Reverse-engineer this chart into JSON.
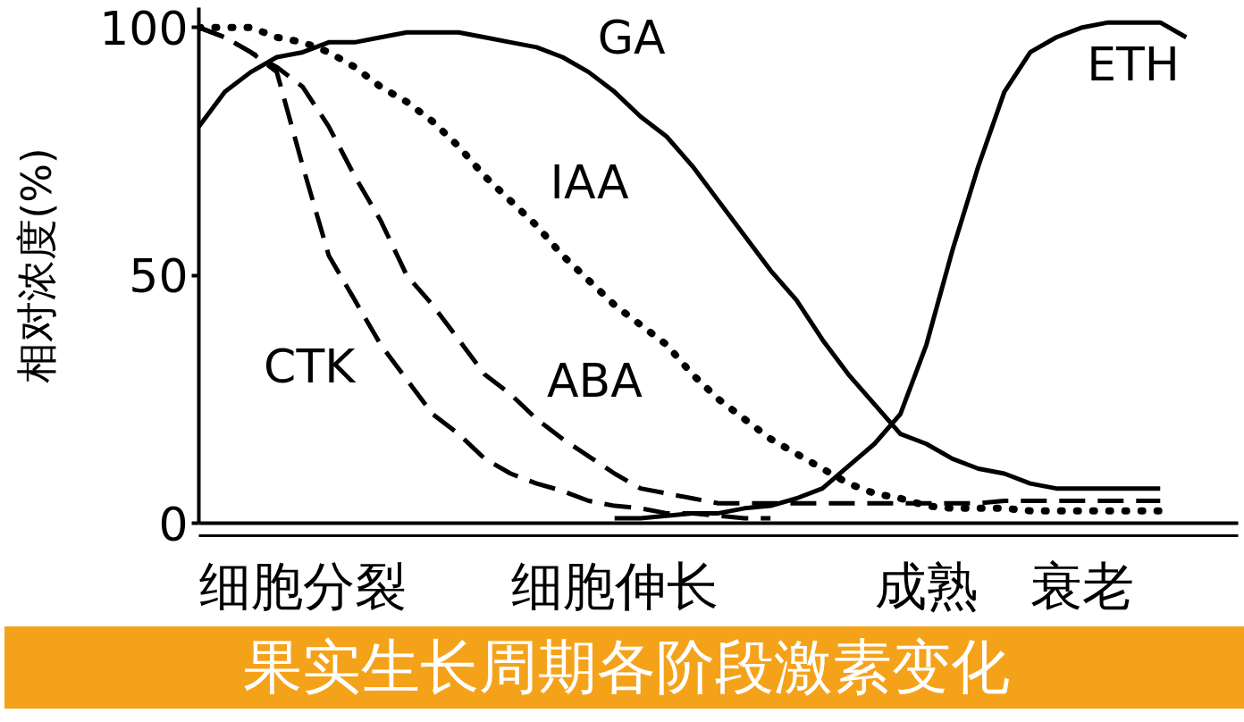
{
  "chart_data": {
    "type": "line",
    "title": "果实生长周期各阶段激素变化",
    "ylabel": "相对浓度(%)",
    "categories": [
      null,
      null,
      null,
      null,
      "细胞分裂",
      null,
      null,
      null,
      null,
      null,
      null,
      null,
      null,
      null,
      null,
      null,
      "细胞伸长",
      null,
      null,
      null,
      null,
      null,
      null,
      null,
      null,
      null,
      null,
      null,
      "成熟",
      null,
      null,
      null,
      null,
      null,
      "衰老",
      null,
      null,
      null,
      null,
      null,
      null
    ],
    "ylim": [
      0,
      104
    ],
    "yticks": [
      0,
      50,
      100
    ],
    "series": [
      {
        "name": "IAA",
        "color": "#000000",
        "line_style": "dotted",
        "values": [
          100,
          100,
          100,
          98,
          97,
          95,
          92,
          88,
          85,
          81,
          76,
          70,
          65,
          60,
          54,
          49,
          44,
          40,
          36,
          30,
          25,
          21,
          17,
          14,
          11,
          8,
          6,
          5,
          3.5,
          3,
          3,
          3,
          2.5,
          2.5,
          2.5,
          2.5,
          2.5,
          2.5,
          null,
          null,
          null
        ]
      },
      {
        "name": "GA",
        "color": "#000000",
        "line_style": "solid",
        "values": [
          80,
          87,
          91,
          94,
          95,
          97,
          97,
          98,
          99,
          99,
          99,
          98,
          97,
          96,
          94,
          91,
          87,
          82,
          78,
          72,
          65,
          58,
          51,
          45,
          37,
          30,
          24,
          18,
          16,
          13,
          11,
          10,
          8,
          7,
          7,
          7,
          7,
          7,
          null,
          null,
          null
        ]
      },
      {
        "name": "ETH",
        "color": "#000000",
        "line_style": "solid",
        "values": [
          null,
          null,
          null,
          null,
          null,
          null,
          null,
          null,
          null,
          null,
          null,
          null,
          null,
          null,
          null,
          null,
          1,
          1,
          1.5,
          2,
          2,
          3,
          3.5,
          5,
          7,
          11.5,
          16,
          22,
          36,
          55,
          72,
          87,
          95,
          98,
          100,
          101,
          101,
          101,
          98,
          null,
          null
        ]
      },
      {
        "name": "CTK",
        "color": "#000000",
        "line_style": "dashed",
        "values": [
          100,
          98,
          95,
          91,
          72,
          54,
          45,
          36,
          29,
          22,
          18,
          13,
          10,
          8,
          6.5,
          4.5,
          3.5,
          3,
          2,
          2,
          1.5,
          1,
          1,
          null,
          null,
          null,
          null,
          null,
          null,
          null,
          null,
          null,
          null,
          null,
          null,
          null,
          null,
          null,
          null,
          null,
          null
        ]
      },
      {
        "name": "ABA",
        "color": "#000000",
        "line_style": "dashed",
        "values": [
          100,
          98,
          95,
          92,
          88,
          80,
          70,
          61,
          50,
          44,
          37,
          30,
          26,
          21,
          17,
          13.5,
          10,
          7,
          6,
          5,
          4,
          4,
          4,
          4,
          4,
          4,
          4,
          4,
          4,
          4,
          4,
          4.5,
          4.5,
          4.5,
          4.5,
          4.5,
          4.5,
          4.5,
          null,
          null,
          null
        ]
      }
    ]
  }
}
